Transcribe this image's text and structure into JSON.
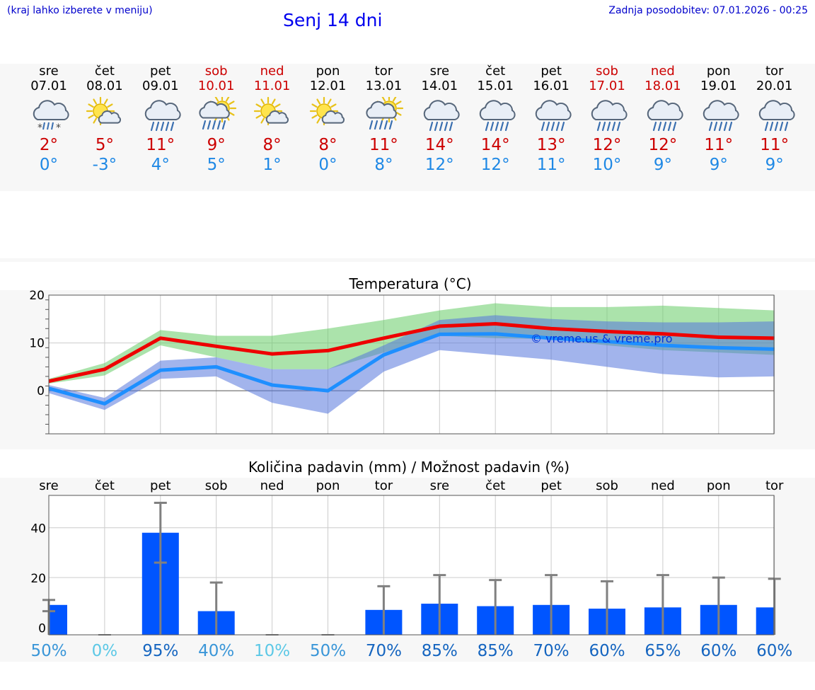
{
  "header": {
    "hint": "(kraj lahko izberete v meniju)",
    "title": "Senj 14 dni",
    "updated": "Zadnja posodobitev: 07.01.2026 - 00:25"
  },
  "colors": {
    "max": "#ee0000",
    "min": "#1e8fff",
    "bar": "#0055ff",
    "whisker": "#808080"
  },
  "days": [
    {
      "name": "sre",
      "date": "07.01",
      "icon": "cloud-snow-rain-icon",
      "max": "2°",
      "min": "0°",
      "weekend": false
    },
    {
      "name": "čet",
      "date": "08.01",
      "icon": "sun-cloud-icon",
      "max": "5°",
      "min": "-3°",
      "weekend": false
    },
    {
      "name": "pet",
      "date": "09.01",
      "icon": "cloud-rain-icon",
      "max": "11°",
      "min": "4°",
      "weekend": false
    },
    {
      "name": "sob",
      "date": "10.01",
      "icon": "sun-cloud-rain-icon",
      "max": "9°",
      "min": "5°",
      "weekend": true
    },
    {
      "name": "ned",
      "date": "11.01",
      "icon": "sun-cloud-icon",
      "max": "8°",
      "min": "1°",
      "weekend": true
    },
    {
      "name": "pon",
      "date": "12.01",
      "icon": "sun-cloud-icon",
      "max": "8°",
      "min": "0°",
      "weekend": false
    },
    {
      "name": "tor",
      "date": "13.01",
      "icon": "sun-cloud-rain-icon",
      "max": "11°",
      "min": "8°",
      "weekend": false
    },
    {
      "name": "sre",
      "date": "14.01",
      "icon": "cloud-rain-icon",
      "max": "14°",
      "min": "12°",
      "weekend": false
    },
    {
      "name": "čet",
      "date": "15.01",
      "icon": "cloud-rain-icon",
      "max": "14°",
      "min": "12°",
      "weekend": false
    },
    {
      "name": "pet",
      "date": "16.01",
      "icon": "cloud-rain-icon",
      "max": "13°",
      "min": "11°",
      "weekend": false
    },
    {
      "name": "sob",
      "date": "17.01",
      "icon": "cloud-rain-icon",
      "max": "12°",
      "min": "10°",
      "weekend": true
    },
    {
      "name": "ned",
      "date": "18.01",
      "icon": "cloud-rain-icon",
      "max": "12°",
      "min": "9°",
      "weekend": true
    },
    {
      "name": "pon",
      "date": "19.01",
      "icon": "cloud-rain-icon",
      "max": "11°",
      "min": "9°",
      "weekend": false
    },
    {
      "name": "tor",
      "date": "20.01",
      "icon": "cloud-rain-icon",
      "max": "11°",
      "min": "9°",
      "weekend": false
    }
  ],
  "chart_data": [
    {
      "type": "line",
      "title": "Temperatura (°C)",
      "xlabel": "",
      "ylabel": "",
      "ylim": [
        -9,
        20
      ],
      "yticks": [
        "20",
        "10",
        "0"
      ],
      "watermark": "© vreme.us & vreme.pro",
      "series": [
        {
          "name": "max",
          "values": [
            2,
            4.5,
            11,
            9.3,
            7.7,
            8.4,
            11,
            13.5,
            14,
            13,
            12.4,
            11.9,
            11.2,
            11
          ]
        },
        {
          "name": "min",
          "values": [
            0.5,
            -2.7,
            4.3,
            5,
            1.2,
            0,
            7.5,
            11.8,
            11.9,
            11,
            10.3,
            9.5,
            9,
            8.7
          ]
        }
      ],
      "band_max": {
        "upper": [
          2.5,
          5.8,
          12.7,
          11.5,
          11.5,
          13,
          14.8,
          16.8,
          18.3,
          17.5,
          17.5,
          17.8,
          17.3,
          16.8
        ],
        "lower": [
          1.5,
          3.2,
          9.5,
          7,
          4.5,
          4.5,
          8,
          11.5,
          11,
          10.8,
          9.5,
          8.5,
          8,
          7.5
        ]
      },
      "band_min": {
        "upper": [
          1.2,
          -1.5,
          6.3,
          7,
          4.5,
          4.5,
          9.5,
          14.8,
          15.8,
          15,
          14.5,
          14.3,
          14.3,
          14.5
        ],
        "lower": [
          -0.5,
          -4,
          2.5,
          3,
          -2.5,
          -4.8,
          4,
          8.5,
          7.5,
          6.5,
          5,
          3.5,
          2.8,
          3
        ]
      }
    },
    {
      "type": "bar",
      "title": "Količina padavin (mm) / Možnost padavin (%)",
      "categories": [
        "sre",
        "čet",
        "pet",
        "sob",
        "ned",
        "pon",
        "tor",
        "sre",
        "čet",
        "pet",
        "sob",
        "ned",
        "pon",
        "tor"
      ],
      "ylim": [
        -3,
        53
      ],
      "yticks": [
        "40",
        "20",
        "0"
      ],
      "values": [
        9,
        0,
        38,
        6.5,
        0,
        0,
        7,
        9.5,
        8.5,
        9,
        7.5,
        8,
        9,
        8
      ],
      "error_upper": [
        11,
        0,
        50,
        18,
        0,
        0,
        16.5,
        21,
        19,
        21,
        18.5,
        21,
        20,
        19.5
      ],
      "error_lower": [
        6.5,
        0,
        26,
        0,
        0,
        0,
        0,
        0,
        0,
        0,
        0,
        0,
        0,
        0
      ],
      "probability": [
        "50%",
        "0%",
        "95%",
        "40%",
        "10%",
        "50%",
        "70%",
        "85%",
        "85%",
        "70%",
        "60%",
        "65%",
        "60%",
        "60%"
      ]
    }
  ]
}
